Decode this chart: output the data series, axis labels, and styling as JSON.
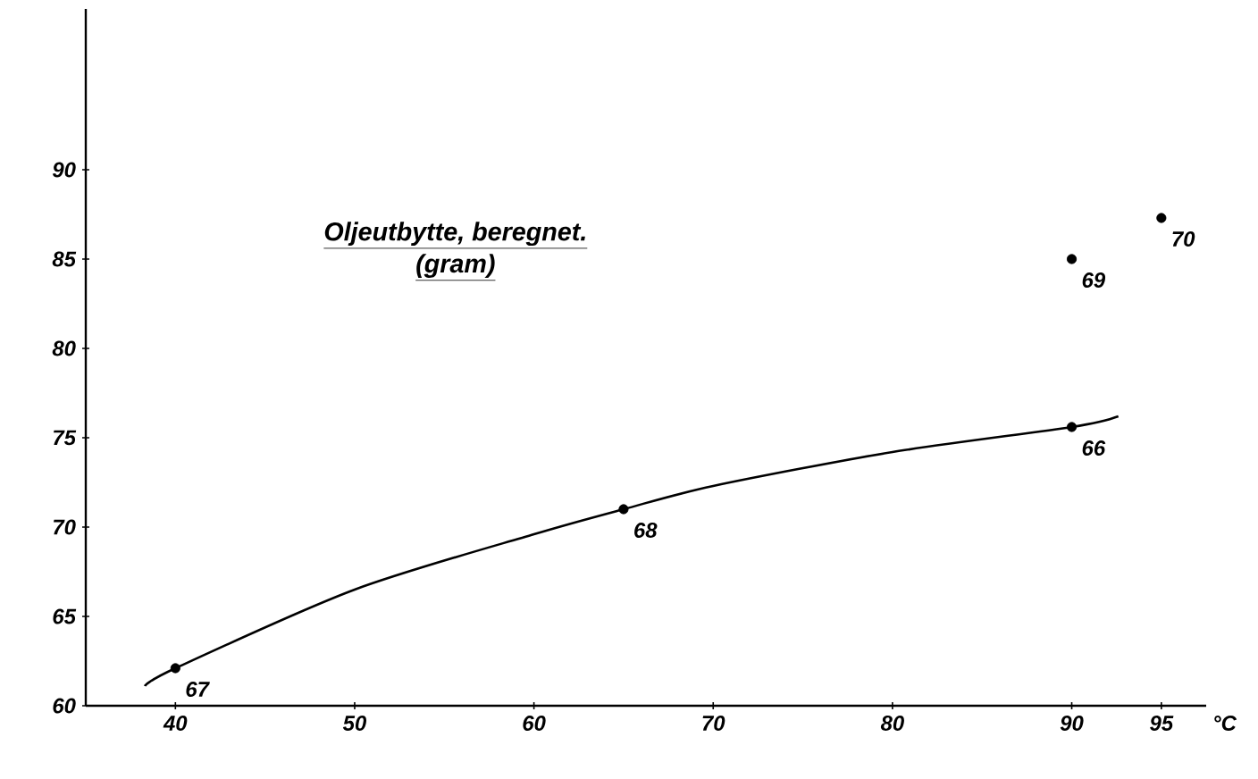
{
  "chart_data": {
    "type": "scatter",
    "title": "Oljeutbytte, beregnet.",
    "subtitle": "(gram)",
    "xlabel": "°C",
    "xlim": [
      35,
      97.5
    ],
    "ylim": [
      60,
      99
    ],
    "xticks": [
      40,
      50,
      60,
      70,
      80,
      90,
      95
    ],
    "yticks": [
      60,
      65,
      70,
      75,
      80,
      85,
      90
    ],
    "grid": false,
    "series": [
      {
        "type": "line",
        "color": "#000000",
        "marker": "none",
        "line_style": "solid",
        "x": [
          38.3,
          40,
          50,
          60,
          65,
          70,
          80,
          90,
          92.6
        ],
        "values": [
          61.1,
          62.1,
          66.5,
          69.6,
          71,
          72.3,
          74.2,
          75.6,
          76.2
        ]
      },
      {
        "color": "#000000",
        "marker": "circle",
        "x": [
          40,
          65,
          90,
          90,
          95
        ],
        "values": [
          62.1,
          71,
          75.6,
          85,
          87.3
        ]
      }
    ],
    "annotations": [
      {
        "text": "67",
        "x": 40,
        "y": 62.1
      },
      {
        "text": "68",
        "x": 65,
        "y": 71
      },
      {
        "text": "66",
        "x": 90,
        "y": 75.6
      },
      {
        "text": "69",
        "x": 90,
        "y": 85
      },
      {
        "text": "70",
        "x": 95,
        "y": 87.3
      }
    ]
  }
}
